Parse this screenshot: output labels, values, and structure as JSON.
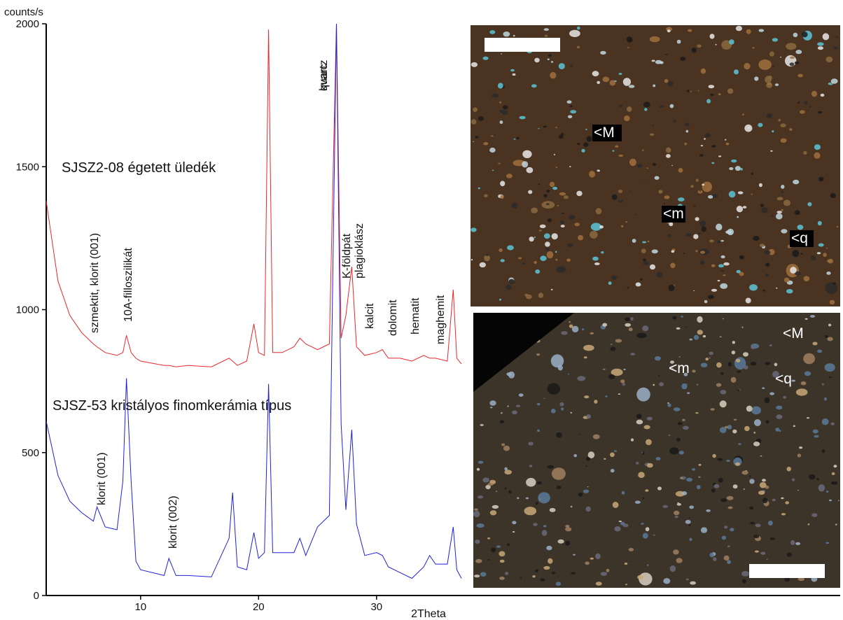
{
  "chart_data": {
    "type": "line",
    "y_label": "counts/s",
    "x_label": "2Theta",
    "x": [
      2,
      3,
      4,
      5,
      6,
      6.3,
      7,
      8,
      8.5,
      8.8,
      9.2,
      9.6,
      10,
      12,
      12.4,
      13,
      14,
      16,
      17.5,
      17.8,
      18.2,
      19,
      19.6,
      20,
      20.5,
      20.85,
      21.2,
      22,
      23,
      23.5,
      24,
      25,
      26,
      26.6,
      27,
      27.4,
      27.9,
      28.3,
      29,
      30,
      30.5,
      31,
      32,
      33,
      34,
      34.5,
      35,
      36,
      36.5,
      36.8,
      37.2
    ],
    "series": [
      {
        "name": "SJSZ2-08 égetett üledék",
        "color": "#e8282c",
        "values": [
          1380,
          1100,
          980,
          920,
          880,
          870,
          850,
          840,
          850,
          910,
          850,
          830,
          820,
          805,
          805,
          800,
          805,
          800,
          830,
          820,
          805,
          820,
          950,
          850,
          840,
          1980,
          850,
          850,
          870,
          900,
          880,
          860,
          880,
          2000,
          900,
          980,
          1150,
          870,
          840,
          850,
          860,
          830,
          830,
          820,
          840,
          830,
          830,
          820,
          1070,
          830,
          810
        ]
      },
      {
        "name": "SJSZ-53 kristályos finomkerámia típus",
        "color": "#2020d8",
        "values": [
          610,
          420,
          330,
          290,
          260,
          310,
          240,
          230,
          400,
          760,
          400,
          120,
          90,
          70,
          130,
          70,
          70,
          65,
          200,
          360,
          100,
          90,
          220,
          130,
          150,
          740,
          150,
          150,
          150,
          200,
          140,
          240,
          280,
          2000,
          600,
          300,
          580,
          250,
          140,
          150,
          140,
          100,
          80,
          60,
          100,
          140,
          110,
          110,
          240,
          90,
          60
        ]
      }
    ],
    "xlim": [
      2,
      69.3
    ],
    "xticks": [
      10,
      20,
      30
    ],
    "ylim": [
      0,
      2000
    ],
    "yticks": [
      0,
      500,
      1000,
      1500,
      2000
    ],
    "annotations": [
      "szmektit, klorit (001)",
      "10A-filloszilikát",
      "kvarc",
      "quartz",
      "K-földpát",
      "plagioklász",
      "kalcit",
      "dolomit",
      "hematit",
      "maghemit",
      "klorit (001)",
      "klorit (002)"
    ],
    "image_labels": [
      "<M",
      "<m",
      "<q",
      "<M",
      "<m",
      "<q"
    ]
  }
}
